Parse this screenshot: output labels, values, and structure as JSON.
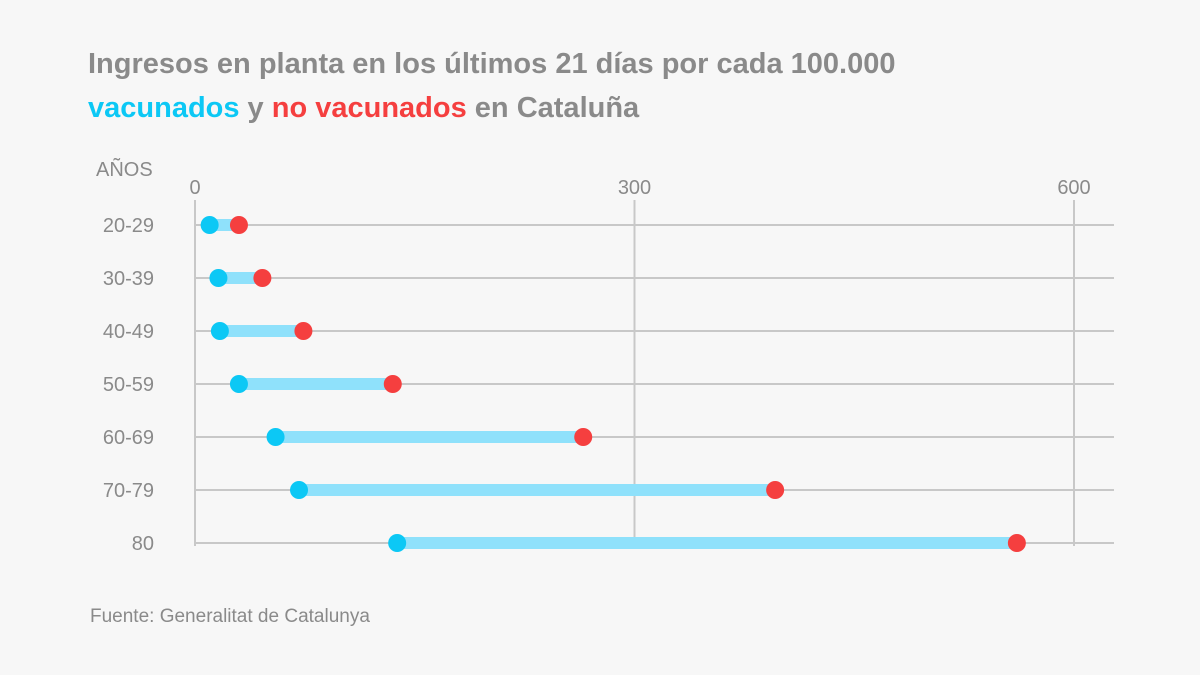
{
  "title": {
    "line1": "Ingresos en planta  en los últimos 21 días por cada 100.000",
    "vacunados": "vacunados",
    "y": " y ",
    "no_vacunados": "no vacunados",
    "end": " en Cataluña"
  },
  "source": "Fuente: Generalitat de Catalunya",
  "colors": {
    "vaccinated": "#0cc8f5",
    "unvaccinated": "#f53f3f",
    "bar": "#8fe1fb",
    "grid": "#c8c8c8",
    "text": "#8a8a8a",
    "background": "#f7f7f7"
  },
  "chart_data": {
    "type": "dumbbell",
    "ylabel": "AÑOS",
    "xlim": [
      0,
      600
    ],
    "xticks": [
      0,
      300,
      600
    ],
    "grid": true,
    "categories": [
      "20-29",
      "30-39",
      "40-49",
      "50-59",
      "60-69",
      "70-79",
      "80"
    ],
    "series": [
      {
        "name": "vacunados",
        "values": [
          10,
          16,
          17,
          30,
          55,
          71,
          138
        ]
      },
      {
        "name": "no vacunados",
        "values": [
          30,
          46,
          74,
          135,
          265,
          396,
          561
        ]
      }
    ]
  }
}
